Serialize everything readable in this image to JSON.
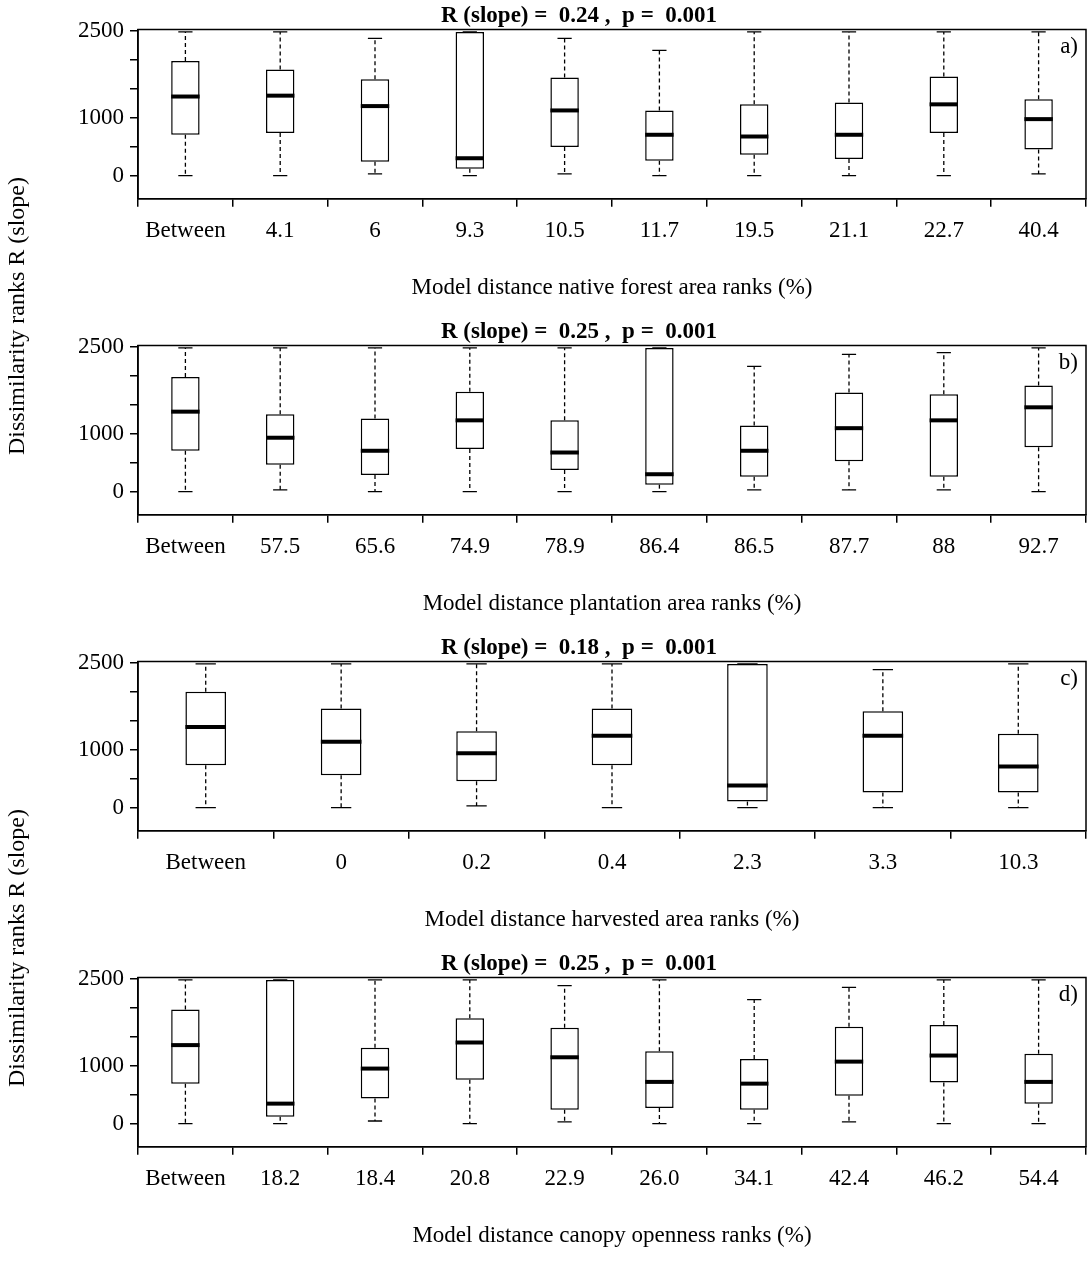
{
  "chart_data": [
    {
      "type": "box",
      "title": "R (slope) =  0.24 ,  p =  0.001",
      "xlabel": "Model distance native forest area ranks (%)",
      "ylabel": "Dissimilarity ranks R (slope)",
      "annotations": [
        "a)"
      ],
      "categories": [
        "Between",
        "4.1",
        "6",
        "9.3",
        "10.5",
        "11.7",
        "19.5",
        "21.1",
        "22.7",
        "40.4"
      ],
      "boxes": [
        {
          "low": 0,
          "q1": 705,
          "median": 1365,
          "q3": 1980,
          "high": 2480
        },
        {
          "low": 0,
          "q1": 735,
          "median": 1380,
          "q3": 1830,
          "high": 2480
        },
        {
          "low": 30,
          "q1": 240,
          "median": 1200,
          "q3": 1665,
          "high": 2370
        },
        {
          "low": 0,
          "q1": 120,
          "median": 300,
          "q3": 2480,
          "high": 2480
        },
        {
          "low": 30,
          "q1": 495,
          "median": 1125,
          "q3": 1695,
          "high": 2370
        },
        {
          "low": 0,
          "q1": 255,
          "median": 705,
          "q3": 1125,
          "high": 2160
        },
        {
          "low": 0,
          "q1": 360,
          "median": 675,
          "q3": 1230,
          "high": 2480
        },
        {
          "low": 0,
          "q1": 285,
          "median": 705,
          "q3": 1260,
          "high": 2480
        },
        {
          "low": 0,
          "q1": 735,
          "median": 1230,
          "q3": 1710,
          "high": 2480
        },
        {
          "low": 30,
          "q1": 450,
          "median": 975,
          "q3": 1320,
          "high": 2480
        }
      ],
      "ylim": [
        -400,
        2520
      ],
      "yticks": [
        0,
        {
          "value": 500,
          "label": null
        },
        1000,
        {
          "value": 1500,
          "label": null
        },
        {
          "value": 2000,
          "label": null
        },
        2500
      ],
      "grid": false
    },
    {
      "type": "box",
      "title": "R (slope) =  0.25 ,  p =  0.001",
      "xlabel": "Model distance plantation area ranks (%)",
      "annotations": [
        "b)"
      ],
      "categories": [
        "Between",
        "57.5",
        "65.6",
        "74.9",
        "78.9",
        "86.4",
        "86.5",
        "87.7",
        "88",
        "92.7"
      ],
      "boxes": [
        {
          "low": 0,
          "q1": 705,
          "median": 1380,
          "q3": 1980,
          "high": 2480
        },
        {
          "low": 30,
          "q1": 465,
          "median": 930,
          "q3": 1335,
          "high": 2480
        },
        {
          "low": 0,
          "q1": 285,
          "median": 705,
          "q3": 1260,
          "high": 2480
        },
        {
          "low": 0,
          "q1": 735,
          "median": 1230,
          "q3": 1725,
          "high": 2480
        },
        {
          "low": 0,
          "q1": 375,
          "median": 675,
          "q3": 1230,
          "high": 2480
        },
        {
          "low": 0,
          "q1": 120,
          "median": 300,
          "q3": 2480,
          "high": 2480
        },
        {
          "low": 30,
          "q1": 255,
          "median": 705,
          "q3": 1140,
          "high": 2160
        },
        {
          "low": 30,
          "q1": 525,
          "median": 1095,
          "q3": 1710,
          "high": 2370
        },
        {
          "low": 30,
          "q1": 255,
          "median": 1230,
          "q3": 1680,
          "high": 2400
        },
        {
          "low": 0,
          "q1": 765,
          "median": 1455,
          "q3": 1830,
          "high": 2480
        }
      ],
      "ylim": [
        -400,
        2520
      ],
      "yticks": [
        0,
        {
          "value": 500,
          "label": null
        },
        1000,
        {
          "value": 1500,
          "label": null
        },
        {
          "value": 2000,
          "label": null
        },
        2500
      ],
      "grid": false
    },
    {
      "type": "box",
      "title": "R (slope) =  0.18 ,  p =  0.001",
      "xlabel": "Model distance harvested area ranks (%)",
      "ylabel": "Dissimilarity ranks R (slope)",
      "annotations": [
        "c)"
      ],
      "categories": [
        "Between",
        "0",
        "0.2",
        "0.4",
        "2.3",
        "3.3",
        "10.3"
      ],
      "boxes": [
        {
          "low": 0,
          "q1": 730,
          "median": 1390,
          "q3": 2000,
          "high": 2480
        },
        {
          "low": 0,
          "q1": 560,
          "median": 1135,
          "q3": 1710,
          "high": 2480
        },
        {
          "low": 30,
          "q1": 455,
          "median": 940,
          "q3": 1320,
          "high": 2480
        },
        {
          "low": 0,
          "q1": 730,
          "median": 1240,
          "q3": 1710,
          "high": 2480
        },
        {
          "low": 0,
          "q1": 105,
          "median": 380,
          "q3": 2480,
          "high": 2480
        },
        {
          "low": 0,
          "q1": 260,
          "median": 1240,
          "q3": 1665,
          "high": 2380
        },
        {
          "low": 0,
          "q1": 260,
          "median": 710,
          "q3": 1275,
          "high": 2480
        }
      ],
      "ylim": [
        -400,
        2520
      ],
      "yticks": [
        0,
        {
          "value": 500,
          "label": null
        },
        1000,
        {
          "value": 1500,
          "label": null
        },
        {
          "value": 2000,
          "label": null
        },
        2500
      ],
      "grid": false
    },
    {
      "type": "box",
      "title": "R (slope) =  0.25 ,  p =  0.001",
      "xlabel": "Model distance canopy openness ranks (%)",
      "annotations": [
        "d)"
      ],
      "categories": [
        "Between",
        "18.2",
        "18.4",
        "20.8",
        "22.9",
        "26.0",
        "34.1",
        "42.4",
        "46.2",
        "54.4"
      ],
      "boxes": [
        {
          "low": 0,
          "q1": 690,
          "median": 1355,
          "q3": 1970,
          "high": 2480
        },
        {
          "low": 0,
          "q1": 120,
          "median": 345,
          "q3": 2480,
          "high": 2480
        },
        {
          "low": 45,
          "q1": 435,
          "median": 950,
          "q3": 1310,
          "high": 2480
        },
        {
          "low": 0,
          "q1": 755,
          "median": 1400,
          "q3": 1820,
          "high": 2480
        },
        {
          "low": 30,
          "q1": 240,
          "median": 1145,
          "q3": 1655,
          "high": 2380
        },
        {
          "low": 0,
          "q1": 270,
          "median": 720,
          "q3": 1250,
          "high": 2480
        },
        {
          "low": 0,
          "q1": 240,
          "median": 690,
          "q3": 1115,
          "high": 2140
        },
        {
          "low": 30,
          "q1": 480,
          "median": 1070,
          "q3": 1670,
          "high": 2350
        },
        {
          "low": 0,
          "q1": 710,
          "median": 1175,
          "q3": 1700,
          "high": 2480
        },
        {
          "low": 0,
          "q1": 345,
          "median": 720,
          "q3": 1205,
          "high": 2480
        }
      ],
      "ylim": [
        -400,
        2520
      ],
      "yticks": [
        0,
        {
          "value": 500,
          "label": null
        },
        1000,
        {
          "value": 1500,
          "label": null
        },
        {
          "value": 2000,
          "label": null
        },
        2500
      ],
      "grid": false
    }
  ]
}
